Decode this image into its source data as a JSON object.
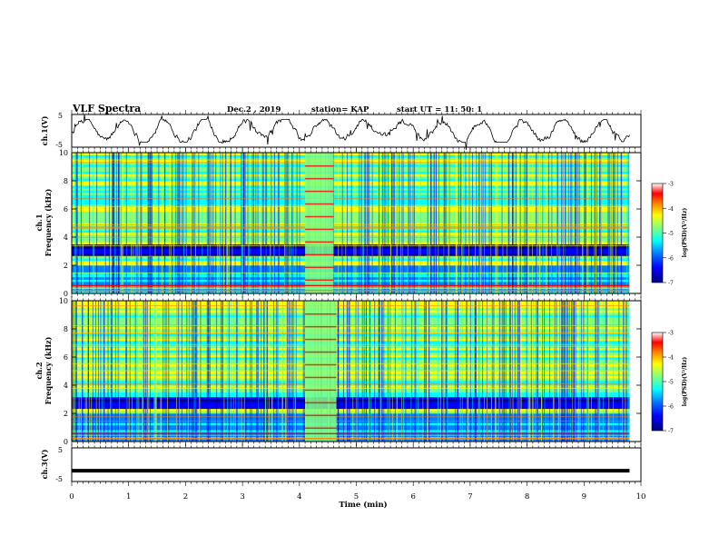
{
  "header": {
    "title": "VLF Spectra",
    "date": "Dec.2 , 2019",
    "station": "station= KAP",
    "start": "start UT =  11: 50: 1"
  },
  "colors": {
    "colormap": [
      "#00007f",
      "#0000ff",
      "#0080ff",
      "#00ffff",
      "#80ff80",
      "#ffff00",
      "#ff8000",
      "#ff0000",
      "#ffffff"
    ],
    "trace": "#000000"
  },
  "chart_data": [
    {
      "type": "line",
      "panel": "ch1-waveform",
      "ylabel": "ch.1(V)",
      "ylim": [
        -5,
        5
      ],
      "yticks": [
        "5",
        "-5"
      ],
      "description_values": "noisy waveform oscillating roughly between -2 and 2 V over 0-9.8 min",
      "x_range": [
        0,
        9.8
      ]
    },
    {
      "type": "heatmap",
      "panel": "ch1-spectrogram",
      "ylabel_line1": "ch.1",
      "ylabel_line2": "Frequency (kHz)",
      "ylim": [
        0,
        10
      ],
      "yticks": [
        "0",
        "2",
        "4",
        "6",
        "8",
        "10"
      ],
      "x_range": [
        0,
        9.8
      ],
      "colorbar": {
        "label": "log(PSD)(V²/Hz)",
        "ticks": [
          "-3",
          "-4",
          "-5",
          "-6",
          "-7"
        ],
        "range": [
          -7,
          -3
        ]
      },
      "features": {
        "blue_band_khz": [
          2.6,
          3.6
        ],
        "burst_min": [
          4.1,
          4.6
        ]
      }
    },
    {
      "type": "heatmap",
      "panel": "ch2-spectrogram",
      "ylabel_line1": "ch.2",
      "ylabel_line2": "Frequency (kHz)",
      "ylim": [
        0,
        10
      ],
      "yticks": [
        "0",
        "2",
        "4",
        "6",
        "8",
        "10"
      ],
      "x_range": [
        0,
        9.8
      ],
      "colorbar": {
        "label": "log(PSD)(V²/Hz)",
        "ticks": [
          "-3",
          "-4",
          "-5",
          "-6",
          "-7"
        ],
        "range": [
          -7,
          -3
        ]
      },
      "features": {
        "blue_band_khz": [
          2.2,
          3.2
        ],
        "burst_min": [
          4.1,
          4.65
        ]
      }
    },
    {
      "type": "line",
      "panel": "ch3-waveform",
      "ylabel": "ch.3(V)",
      "ylim": [
        -5,
        5
      ],
      "yticks": [
        "5",
        "-5"
      ],
      "x": [
        0,
        9.8
      ],
      "y": [
        -1.8,
        -1.8
      ]
    }
  ],
  "x_axis": {
    "label": "Time (min)",
    "ticks": [
      "0",
      "1",
      "2",
      "3",
      "4",
      "5",
      "6",
      "7",
      "8",
      "9",
      "10"
    ],
    "xlim": [
      0,
      10
    ]
  }
}
